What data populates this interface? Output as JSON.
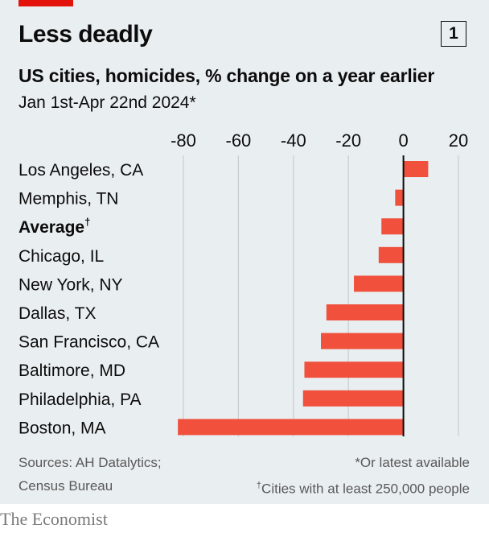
{
  "header": {
    "title": "Less deadly",
    "chart_number": "1",
    "accent_color": "#e3120b"
  },
  "footer": {
    "source_line1": "Sources: AH Datalytics;",
    "source_line2": "Census Bureau",
    "note1": "*Or latest available",
    "note2_mark": "†",
    "note2": "Cities with at least 250,000 people"
  },
  "brand": "The Economist",
  "chart_data": {
    "type": "bar",
    "orientation": "horizontal",
    "title": "US cities, homicides, % change on a year earlier",
    "subtitle": "Jan 1st-Apr 22nd 2024*",
    "xlabel": "",
    "ylabel": "",
    "xlim": [
      -80,
      20
    ],
    "ticks": [
      -80,
      -60,
      -40,
      -20,
      0,
      20
    ],
    "grid": true,
    "bar_color": "#f0503c",
    "categories": [
      "Los Angeles, CA",
      "Memphis, TN",
      "Average",
      "Chicago, IL",
      "New York, NY",
      "Dallas, TX",
      "San Francisco, CA",
      "Baltimore, MD",
      "Philadelphia, PA",
      "Boston, MA"
    ],
    "category_marks": [
      "",
      "",
      "†",
      "",
      "",
      "",
      "",
      "",
      "",
      ""
    ],
    "highlight": "Average",
    "values": [
      9,
      -3,
      -8,
      -9,
      -18,
      -28,
      -30,
      -36,
      -36.5,
      -82
    ]
  }
}
